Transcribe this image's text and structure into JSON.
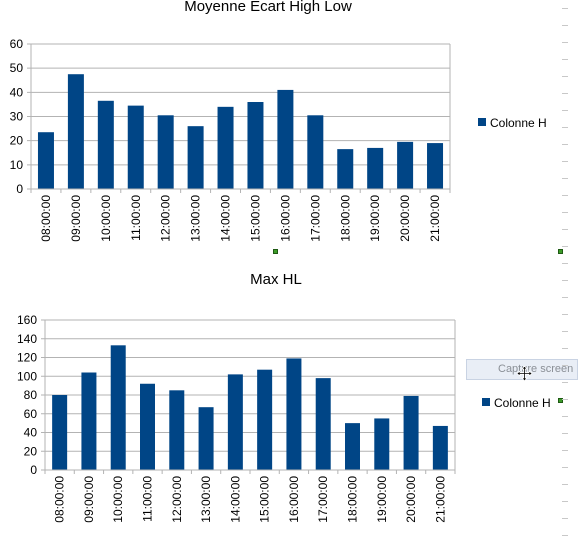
{
  "colors": {
    "bar": "#004586",
    "grid": "#b3b3b3",
    "axis": "#b3b3b3",
    "text": "#000000"
  },
  "icons": {
    "move_cursor": "move-cursor-icon",
    "selection_handle": "selection-handle-icon"
  },
  "capture_button": {
    "label": "Capture screen"
  },
  "chart_data": [
    {
      "type": "bar",
      "title": "Moyenne Ecart High Low",
      "categories": [
        "08:00:00",
        "09:00:00",
        "10:00:00",
        "11:00:00",
        "12:00:00",
        "13:00:00",
        "14:00:00",
        "15:00:00",
        "16:00:00",
        "17:00:00",
        "18:00:00",
        "19:00:00",
        "20:00:00",
        "21:00:00"
      ],
      "series": [
        {
          "name": "Colonne H",
          "values": [
            23.5,
            47.5,
            36.5,
            34.5,
            30.5,
            26,
            34,
            36,
            41,
            30.5,
            16.5,
            17,
            19.5,
            19
          ]
        }
      ],
      "ylim": [
        0,
        60
      ],
      "yticks": [
        0,
        10,
        20,
        30,
        40,
        50,
        60
      ],
      "grid": true,
      "legend": "right"
    },
    {
      "type": "bar",
      "title": "Max HL",
      "categories": [
        "08:00:00",
        "09:00:00",
        "10:00:00",
        "11:00:00",
        "12:00:00",
        "13:00:00",
        "14:00:00",
        "15:00:00",
        "16:00:00",
        "17:00:00",
        "18:00:00",
        "19:00:00",
        "20:00:00",
        "21:00:00"
      ],
      "series": [
        {
          "name": "Colonne H",
          "values": [
            80,
            104,
            133,
            92,
            85,
            67,
            102,
            107,
            119,
            98,
            50,
            55,
            79,
            47
          ]
        }
      ],
      "ylim": [
        0,
        160
      ],
      "yticks": [
        0,
        20,
        40,
        60,
        80,
        100,
        120,
        140,
        160
      ],
      "grid": true,
      "legend": "right"
    }
  ]
}
